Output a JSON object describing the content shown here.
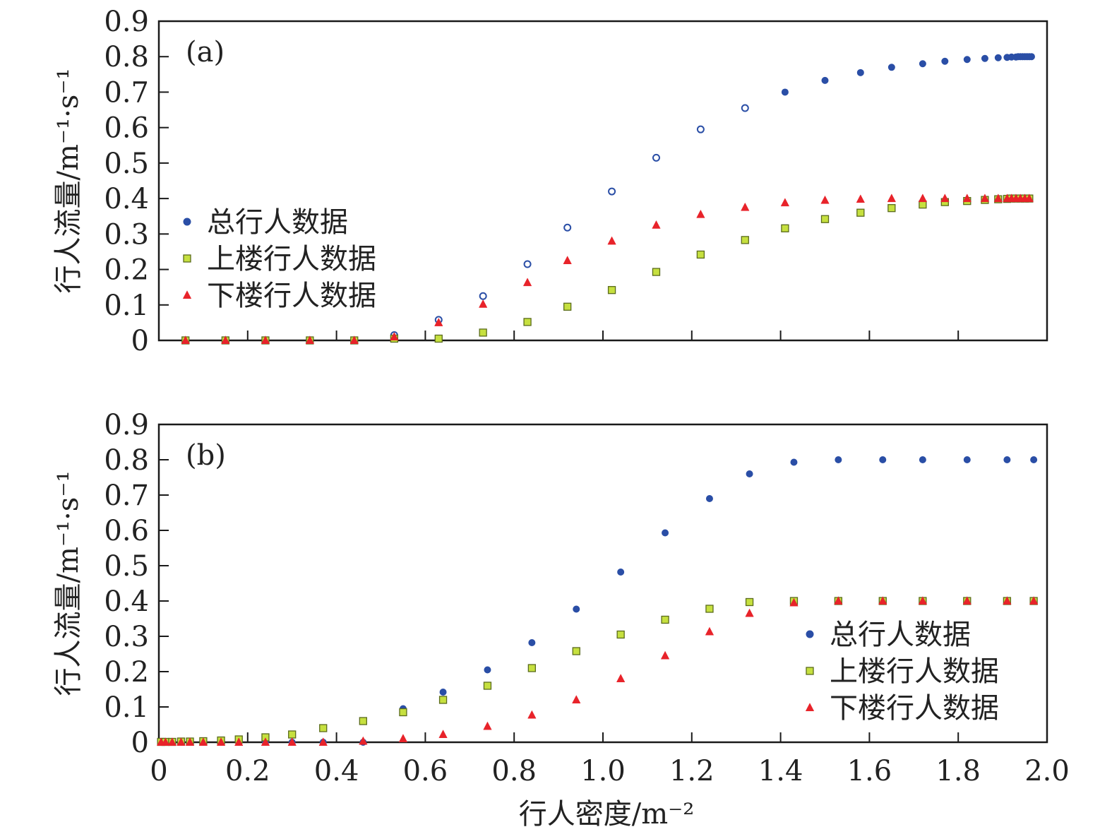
{
  "chart_data": [
    {
      "type": "scatter",
      "panel_label": "(a)",
      "xlabel": "",
      "ylabel": "行人流量/m⁻¹·s⁻¹",
      "xlim": [
        0,
        2.0
      ],
      "ylim": [
        0,
        0.9
      ],
      "yticks": [
        "0",
        "0.1",
        "0.2",
        "0.3",
        "0.4",
        "0.5",
        "0.6",
        "0.7",
        "0.8",
        "0.9"
      ],
      "legend_position": "left-middle",
      "series": [
        {
          "name": "总行人数据",
          "marker": "circle",
          "color": "#2a4ea6",
          "x": [
            0.06,
            0.15,
            0.24,
            0.34,
            0.44,
            0.53,
            0.63,
            0.73,
            0.83,
            0.92,
            1.02,
            1.12,
            1.22,
            1.32,
            1.41,
            1.5,
            1.58,
            1.65,
            1.72,
            1.77,
            1.82,
            1.86,
            1.89,
            1.91,
            1.92,
            1.93,
            1.935,
            1.94,
            1.945,
            1.95,
            1.955,
            1.96,
            1.965
          ],
          "y": [
            0.0,
            0.0,
            0.0,
            0.0,
            0.0,
            0.015,
            0.058,
            0.125,
            0.215,
            0.318,
            0.42,
            0.515,
            0.595,
            0.655,
            0.7,
            0.733,
            0.755,
            0.77,
            0.78,
            0.787,
            0.792,
            0.795,
            0.797,
            0.798,
            0.799,
            0.799,
            0.8,
            0.8,
            0.8,
            0.8,
            0.8,
            0.8,
            0.8
          ],
          "hollow_count": 14
        },
        {
          "name": "上楼行人数据",
          "marker": "square",
          "color": "#c6e03f",
          "x": [
            0.06,
            0.15,
            0.24,
            0.34,
            0.44,
            0.53,
            0.63,
            0.73,
            0.83,
            0.92,
            1.02,
            1.12,
            1.22,
            1.32,
            1.41,
            1.5,
            1.58,
            1.65,
            1.72,
            1.77,
            1.82,
            1.86,
            1.89,
            1.91,
            1.92,
            1.93,
            1.94,
            1.95,
            1.96
          ],
          "y": [
            0.0,
            0.0,
            0.0,
            0.0,
            0.0,
            0.005,
            0.005,
            0.022,
            0.052,
            0.095,
            0.142,
            0.193,
            0.242,
            0.283,
            0.316,
            0.342,
            0.36,
            0.373,
            0.383,
            0.39,
            0.393,
            0.396,
            0.398,
            0.399,
            0.4,
            0.4,
            0.4,
            0.4,
            0.4
          ]
        },
        {
          "name": "下楼行人数据",
          "marker": "triangle",
          "color": "#e8232a",
          "x": [
            0.06,
            0.15,
            0.24,
            0.34,
            0.44,
            0.53,
            0.63,
            0.73,
            0.83,
            0.92,
            1.02,
            1.12,
            1.22,
            1.32,
            1.41,
            1.5,
            1.58,
            1.65,
            1.72,
            1.77,
            1.82,
            1.86,
            1.89,
            1.91,
            1.92,
            1.93,
            1.94,
            1.95,
            1.96
          ],
          "y": [
            0.0,
            0.0,
            0.0,
            0.0,
            0.0,
            0.01,
            0.05,
            0.102,
            0.163,
            0.225,
            0.28,
            0.325,
            0.355,
            0.375,
            0.388,
            0.395,
            0.398,
            0.4,
            0.4,
            0.4,
            0.4,
            0.4,
            0.4,
            0.4,
            0.4,
            0.4,
            0.4,
            0.4,
            0.4
          ]
        }
      ]
    },
    {
      "type": "scatter",
      "panel_label": "(b)",
      "xlabel": "行人密度/m⁻²",
      "ylabel": "行人流量/m⁻¹·s⁻¹",
      "xlim": [
        0,
        2.0
      ],
      "ylim": [
        0,
        0.9
      ],
      "xticks": [
        "0",
        "0.2",
        "0.4",
        "0.6",
        "0.8",
        "1.0",
        "1.2",
        "1.4",
        "1.6",
        "1.8",
        "2.0"
      ],
      "yticks": [
        "0",
        "0.1",
        "0.2",
        "0.3",
        "0.4",
        "0.5",
        "0.6",
        "0.7",
        "0.8",
        "0.9"
      ],
      "legend_position": "right-middle",
      "series": [
        {
          "name": "总行人数据",
          "marker": "circle",
          "color": "#2a4ea6",
          "x": [
            0.005,
            0.015,
            0.03,
            0.05,
            0.07,
            0.1,
            0.14,
            0.18,
            0.24,
            0.3,
            0.37,
            0.46,
            0.55,
            0.64,
            0.74,
            0.84,
            0.94,
            1.04,
            1.14,
            1.24,
            1.33,
            1.43,
            1.53,
            1.63,
            1.72,
            1.82,
            1.91,
            1.97
          ],
          "y": [
            0.0,
            0.0,
            0.0,
            0.0,
            0.0,
            0.0,
            0.0,
            0.0,
            0.0,
            0.0,
            0.0,
            0.0,
            0.095,
            0.142,
            0.205,
            0.282,
            0.377,
            0.482,
            0.593,
            0.69,
            0.76,
            0.793,
            0.8,
            0.8,
            0.8,
            0.8,
            0.8,
            0.8
          ]
        },
        {
          "name": "上楼行人数据",
          "marker": "square",
          "color": "#c6e03f",
          "x": [
            0.005,
            0.015,
            0.03,
            0.05,
            0.07,
            0.1,
            0.14,
            0.18,
            0.24,
            0.3,
            0.37,
            0.46,
            0.55,
            0.64,
            0.74,
            0.84,
            0.94,
            1.04,
            1.14,
            1.24,
            1.33,
            1.43,
            1.53,
            1.63,
            1.72,
            1.82,
            1.91,
            1.97
          ],
          "y": [
            0.001,
            0.001,
            0.001,
            0.002,
            0.002,
            0.003,
            0.005,
            0.008,
            0.014,
            0.022,
            0.04,
            0.06,
            0.085,
            0.12,
            0.16,
            0.21,
            0.258,
            0.305,
            0.347,
            0.378,
            0.397,
            0.4,
            0.4,
            0.4,
            0.4,
            0.4,
            0.4,
            0.4
          ]
        },
        {
          "name": "下楼行人数据",
          "marker": "triangle",
          "color": "#e8232a",
          "x": [
            0.005,
            0.015,
            0.03,
            0.05,
            0.07,
            0.1,
            0.14,
            0.18,
            0.24,
            0.3,
            0.37,
            0.46,
            0.55,
            0.64,
            0.74,
            0.84,
            0.94,
            1.04,
            1.14,
            1.24,
            1.33,
            1.43,
            1.53,
            1.63,
            1.72,
            1.82,
            1.91,
            1.97
          ],
          "y": [
            0.0,
            0.0,
            0.0,
            0.0,
            0.0,
            0.0,
            0.0,
            0.0,
            0.0,
            0.0,
            0.0,
            0.003,
            0.01,
            0.022,
            0.045,
            0.077,
            0.12,
            0.18,
            0.245,
            0.313,
            0.365,
            0.395,
            0.4,
            0.4,
            0.4,
            0.4,
            0.4,
            0.4
          ]
        }
      ]
    }
  ]
}
